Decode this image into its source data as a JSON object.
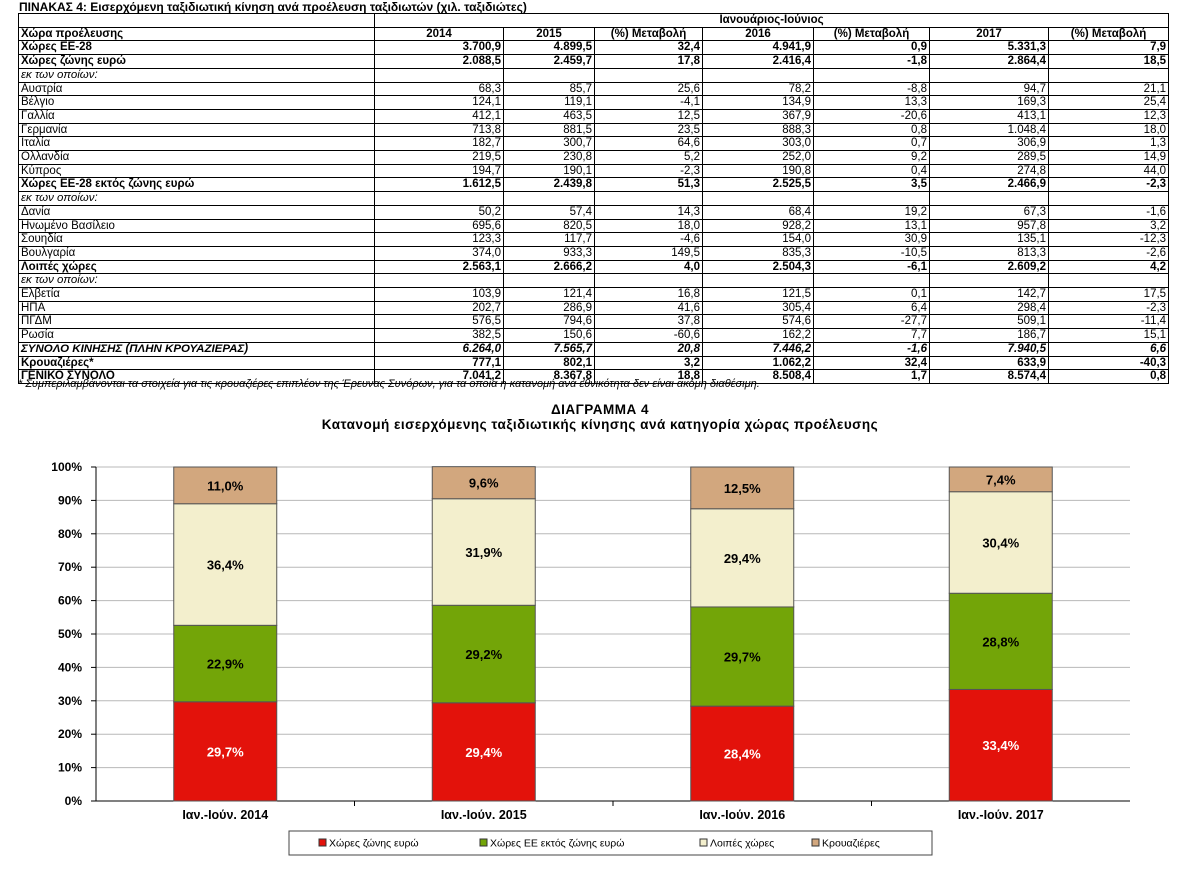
{
  "table": {
    "title": "ΠΙΝΑΚΑΣ 4: Εισερχόμενη ταξιδιωτική κίνηση ανά προέλευση ταξιδιωτών (χιλ. ταξιδιώτες)",
    "period_header": "Ιανουάριος-Ιούνιος",
    "columns": [
      "Χώρα προέλευσης",
      "2014",
      "2015",
      "(%) Μεταβολή",
      "2016",
      "(%) Μεταβολή",
      "2017",
      "(%) Μεταβολή"
    ],
    "rows": [
      {
        "style": "bold",
        "cells": [
          "Χώρες ΕΕ-28",
          "3.700,9",
          "4.899,5",
          "32,4",
          "4.941,9",
          "0,9",
          "5.331,3",
          "7,9"
        ]
      },
      {
        "style": "bold",
        "cells": [
          "Χώρες ζώνης ευρώ",
          "2.088,5",
          "2.459,7",
          "17,8",
          "2.416,4",
          "-1,8",
          "2.864,4",
          "18,5"
        ]
      },
      {
        "style": "italic",
        "cells": [
          "εκ των οποίων:",
          "",
          "",
          "",
          "",
          "",
          "",
          ""
        ]
      },
      {
        "style": "normal",
        "cells": [
          "Αυστρία",
          "68,3",
          "85,7",
          "25,6",
          "78,2",
          "-8,8",
          "94,7",
          "21,1"
        ]
      },
      {
        "style": "normal",
        "cells": [
          "Βέλγιο",
          "124,1",
          "119,1",
          "-4,1",
          "134,9",
          "13,3",
          "169,3",
          "25,4"
        ]
      },
      {
        "style": "normal",
        "cells": [
          "Γαλλία",
          "412,1",
          "463,5",
          "12,5",
          "367,9",
          "-20,6",
          "413,1",
          "12,3"
        ]
      },
      {
        "style": "normal",
        "cells": [
          "Γερμανία",
          "713,8",
          "881,5",
          "23,5",
          "888,3",
          "0,8",
          "1.048,4",
          "18,0"
        ]
      },
      {
        "style": "normal",
        "cells": [
          "Ιταλία",
          "182,7",
          "300,7",
          "64,6",
          "303,0",
          "0,7",
          "306,9",
          "1,3"
        ]
      },
      {
        "style": "normal",
        "cells": [
          "Ολλανδία",
          "219,5",
          "230,8",
          "5,2",
          "252,0",
          "9,2",
          "289,5",
          "14,9"
        ]
      },
      {
        "style": "normal",
        "cells": [
          "Κύπρος",
          "194,7",
          "190,1",
          "-2,3",
          "190,8",
          "0,4",
          "274,8",
          "44,0"
        ]
      },
      {
        "style": "bold",
        "cells": [
          "Χώρες ΕΕ-28 εκτός ζώνης ευρώ",
          "1.612,5",
          "2.439,8",
          "51,3",
          "2.525,5",
          "3,5",
          "2.466,9",
          "-2,3"
        ]
      },
      {
        "style": "italic",
        "cells": [
          "εκ των οποίων:",
          "",
          "",
          "",
          "",
          "",
          "",
          ""
        ]
      },
      {
        "style": "normal",
        "cells": [
          "Δανία",
          "50,2",
          "57,4",
          "14,3",
          "68,4",
          "19,2",
          "67,3",
          "-1,6"
        ]
      },
      {
        "style": "normal",
        "cells": [
          "Ηνωμένο Βασίλειο",
          "695,6",
          "820,5",
          "18,0",
          "928,2",
          "13,1",
          "957,8",
          "3,2"
        ]
      },
      {
        "style": "normal",
        "cells": [
          "Σουηδία",
          "123,3",
          "117,7",
          "-4,6",
          "154,0",
          "30,9",
          "135,1",
          "-12,3"
        ]
      },
      {
        "style": "normal",
        "cells": [
          "Βουλγαρία",
          "374,0",
          "933,3",
          "149,5",
          "835,3",
          "-10,5",
          "813,3",
          "-2,6"
        ]
      },
      {
        "style": "bold",
        "cells": [
          "Λοιπές χώρες",
          "2.563,1",
          "2.666,2",
          "4,0",
          "2.504,3",
          "-6,1",
          "2.609,2",
          "4,2"
        ]
      },
      {
        "style": "italic",
        "cells": [
          "εκ των οποίων:",
          "",
          "",
          "",
          "",
          "",
          "",
          ""
        ]
      },
      {
        "style": "normal",
        "cells": [
          "Ελβετία",
          "103,9",
          "121,4",
          "16,8",
          "121,5",
          "0,1",
          "142,7",
          "17,5"
        ]
      },
      {
        "style": "normal",
        "cells": [
          "ΗΠΑ",
          "202,7",
          "286,9",
          "41,6",
          "305,4",
          "6,4",
          "298,4",
          "-2,3"
        ]
      },
      {
        "style": "normal",
        "cells": [
          "ΠΓΔΜ",
          "576,5",
          "794,6",
          "37,8",
          "574,6",
          "-27,7",
          "509,1",
          "-11,4"
        ]
      },
      {
        "style": "normal",
        "cells": [
          "Ρωσία",
          "382,5",
          "150,6",
          "-60,6",
          "162,2",
          "7,7",
          "186,7",
          "15,1"
        ]
      },
      {
        "style": "bolditalic",
        "cells": [
          "ΣΥΝΟΛΟ ΚΙΝΗΣΗΣ (ΠΛΗΝ ΚΡΟΥΑΖΙΕΡΑΣ)",
          "6.264,0",
          "7.565,7",
          "20,8",
          "7.446,2",
          "-1,6",
          "7.940,5",
          "6,6"
        ]
      },
      {
        "style": "bold",
        "cells": [
          "Κρουαζιέρες*",
          "777,1",
          "802,1",
          "3,2",
          "1.062,2",
          "32,4",
          "633,9",
          "-40,3"
        ]
      },
      {
        "style": "bold",
        "cells": [
          "ΓΕΝΙΚΟ ΣΥΝΟΛΟ",
          "7.041,2",
          "8.367,8",
          "18,8",
          "8.508,4",
          "1,7",
          "8.574,4",
          "0,8"
        ]
      }
    ],
    "footnote": "* Συμπεριλαμβάνονται τα στοιχεία για τις κρουαζιέρες επιπλέον της Έρευνας Συνόρων, για τα οποία η κατανομή ανά εθνικότητα δεν είναι ακόμη διαθέσιμη."
  },
  "chart_data": {
    "type": "bar",
    "stacked": true,
    "title": "ΔΙΑΓΡΑΜΜΑ 4",
    "subtitle": "Κατανομή εισερχόμενης ταξιδιωτικής κίνησης ανά κατηγορία χώρας προέλευσης",
    "categories": [
      "Ιαν.-Ιούν. 2014",
      "Ιαν.-Ιούν. 2015",
      "Ιαν.-Ιούν. 2016",
      "Ιαν.-Ιούν. 2017"
    ],
    "series": [
      {
        "name": "Χώρες ζώνης ευρώ",
        "color": "#e3120b",
        "values": [
          29.7,
          29.4,
          28.4,
          33.4
        ],
        "labels": [
          "29,7%",
          "29,4%",
          "28,4%",
          "33,4%"
        ]
      },
      {
        "name": "Χώρες ΕΕ εκτός ζώνης ευρώ",
        "color": "#73a508",
        "values": [
          22.9,
          29.2,
          29.7,
          28.8
        ],
        "labels": [
          "22,9%",
          "29,2%",
          "29,7%",
          "28,8%"
        ]
      },
      {
        "name": "Λοιπές χώρες",
        "color": "#f3efcd",
        "values": [
          36.4,
          31.9,
          29.4,
          30.4
        ],
        "labels": [
          "36,4%",
          "31,9%",
          "29,4%",
          "30,4%"
        ]
      },
      {
        "name": "Κρουαζιέρες",
        "color": "#d2a77e",
        "values": [
          11.0,
          9.6,
          12.5,
          7.4
        ],
        "labels": [
          "11,0%",
          "9,6%",
          "12,5%",
          "7,4%"
        ]
      }
    ],
    "y_ticks": [
      "0%",
      "10%",
      "20%",
      "30%",
      "40%",
      "50%",
      "60%",
      "70%",
      "80%",
      "90%",
      "100%"
    ],
    "ylim": [
      0,
      100
    ],
    "grid": true,
    "legend_position": "bottom"
  }
}
